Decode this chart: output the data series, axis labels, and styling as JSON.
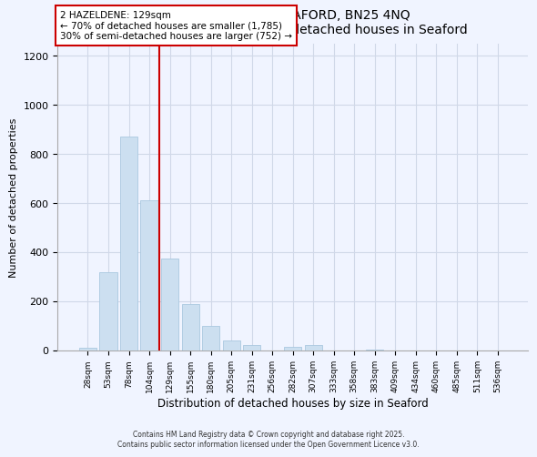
{
  "title": "2, HAZELDENE, SEAFORD, BN25 4NQ",
  "subtitle": "Size of property relative to detached houses in Seaford",
  "xlabel": "Distribution of detached houses by size in Seaford",
  "ylabel": "Number of detached properties",
  "bar_labels": [
    "28sqm",
    "53sqm",
    "78sqm",
    "104sqm",
    "129sqm",
    "155sqm",
    "180sqm",
    "205sqm",
    "231sqm",
    "256sqm",
    "282sqm",
    "307sqm",
    "333sqm",
    "358sqm",
    "383sqm",
    "409sqm",
    "434sqm",
    "460sqm",
    "485sqm",
    "511sqm",
    "536sqm"
  ],
  "bar_values": [
    10,
    320,
    870,
    610,
    375,
    188,
    100,
    42,
    20,
    0,
    15,
    20,
    0,
    0,
    2,
    0,
    0,
    0,
    0,
    0,
    0
  ],
  "bar_color": "#ccdff0",
  "bar_edge_color": "#aac8e0",
  "vline_index": 4,
  "vline_color": "#cc0000",
  "annotation_title": "2 HAZELDENE: 129sqm",
  "annotation_line1": "← 70% of detached houses are smaller (1,785)",
  "annotation_line2": "30% of semi-detached houses are larger (752) →",
  "annotation_box_color": "#ffffff",
  "annotation_box_edge": "#cc0000",
  "ylim": [
    0,
    1250
  ],
  "yticks": [
    0,
    200,
    400,
    600,
    800,
    1000,
    1200
  ],
  "footnote1": "Contains HM Land Registry data © Crown copyright and database right 2025.",
  "footnote2": "Contains public sector information licensed under the Open Government Licence v3.0.",
  "bg_color": "#f0f4ff",
  "grid_color": "#d0d8e8",
  "title_fontsize": 10,
  "subtitle_fontsize": 9
}
